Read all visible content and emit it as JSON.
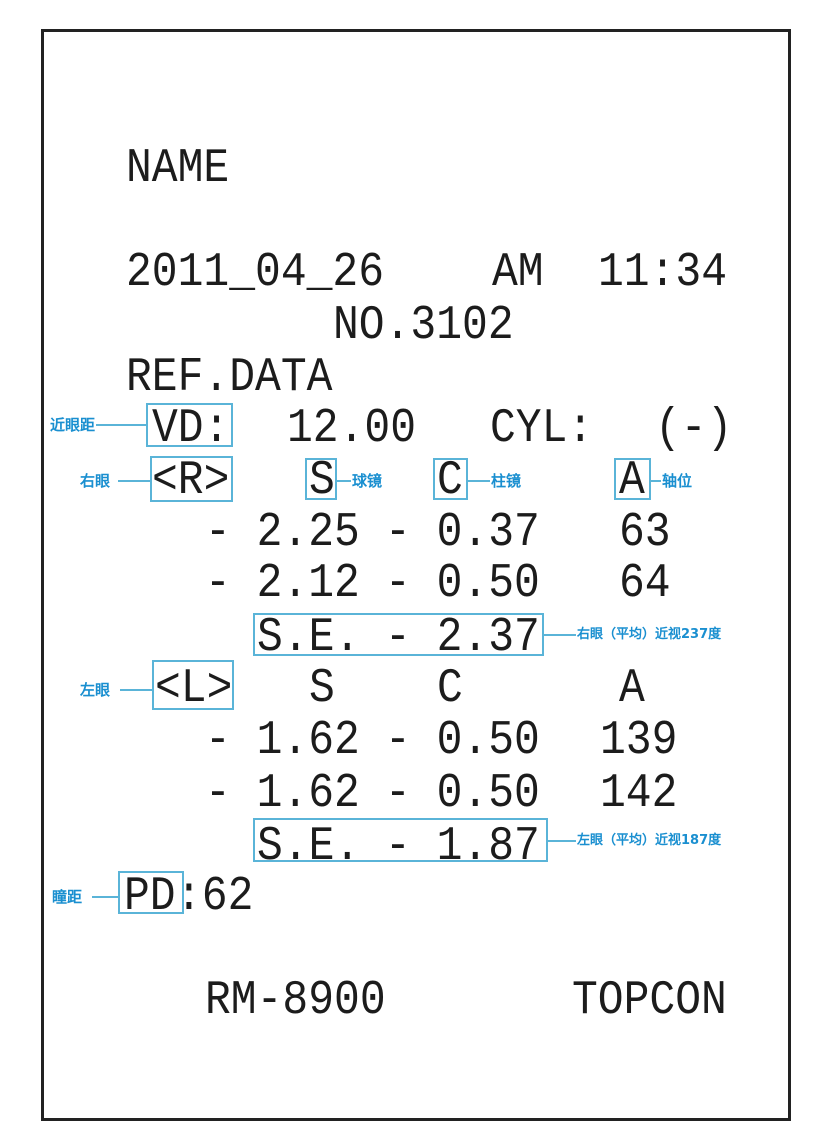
{
  "printout": {
    "name_label": "NAME",
    "date": "2011_04_26",
    "ampm": "AM",
    "time": "11:34",
    "number": "NO.3102",
    "section": "REF.DATA",
    "vd_label": "VD:",
    "vd_value": "12.00",
    "cyl_label": "CYL:",
    "cyl_value": "(-)",
    "right": {
      "eye_label": "<R>",
      "headers": {
        "s": "S",
        "c": "C",
        "a": "A"
      },
      "rows": [
        {
          "s": "- 2.25",
          "c": "- 0.37",
          "a": "63"
        },
        {
          "s": "- 2.12",
          "c": "- 0.50",
          "a": "64"
        }
      ],
      "se_label": "S.E.",
      "se_value": "- 2.37"
    },
    "left": {
      "eye_label": "<L>",
      "headers": {
        "s": "S",
        "c": "C",
        "a": "A"
      },
      "rows": [
        {
          "s": "- 1.62",
          "c": "- 0.50",
          "a": "139"
        },
        {
          "s": "- 1.62",
          "c": "- 0.50",
          "a": "142"
        }
      ],
      "se_label": "S.E.",
      "se_value": "- 1.87"
    },
    "pd_label": "PD",
    "pd_value": ":62",
    "model": "RM-8900",
    "brand": "TOPCON"
  },
  "annotations": {
    "vd": "近眼距",
    "right_eye": "右眼",
    "sphere": "球镜",
    "cylinder": "柱镜",
    "axis": "轴位",
    "right_se": "右眼（平均）近视237度",
    "left_eye": "左眼",
    "left_se": "左眼（平均）近视187度",
    "pd": "瞳距"
  },
  "colors": {
    "annotation": "#1a8fd0",
    "annotation_box": "#5ab4d8"
  }
}
